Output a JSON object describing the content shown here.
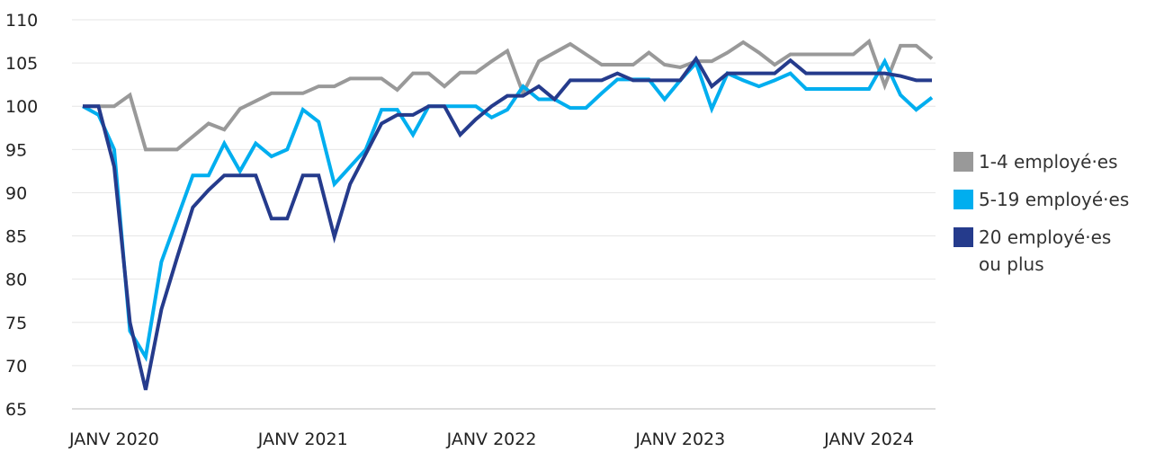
{
  "chart_data": {
    "type": "line",
    "categories": [
      null,
      null,
      "JANV 2020",
      null,
      null,
      null,
      null,
      null,
      null,
      null,
      null,
      null,
      null,
      null,
      "JANV 2021",
      null,
      null,
      null,
      null,
      null,
      null,
      null,
      null,
      null,
      null,
      null,
      "JANV 2022",
      null,
      null,
      null,
      null,
      null,
      null,
      null,
      null,
      null,
      null,
      null,
      "JANV 2023",
      null,
      null,
      null,
      null,
      null,
      null,
      null,
      null,
      null,
      null,
      null,
      "JANV 2024",
      null,
      null,
      null,
      null
    ],
    "series": [
      {
        "name": "1-4 employé·es",
        "color": "#999999",
        "values": [
          100,
          100,
          100,
          101.3,
          95,
          95,
          95,
          96.5,
          98,
          97.3,
          99.7,
          100.6,
          101.5,
          101.5,
          101.5,
          102.3,
          102.3,
          103.2,
          103.2,
          103.2,
          101.9,
          103.8,
          103.8,
          102.3,
          103.9,
          103.9,
          105.2,
          106.4,
          101.5,
          105.2,
          106.2,
          107.2,
          106,
          104.8,
          104.8,
          104.8,
          106.2,
          104.8,
          104.5,
          105.2,
          105.2,
          106.2,
          107.4,
          106.2,
          104.8,
          106,
          106,
          106,
          106,
          106,
          107.5,
          102.4,
          107,
          107,
          105.5
        ]
      },
      {
        "name": "5-19 employé·es",
        "color": "#00aeef",
        "values": [
          100,
          99,
          95,
          74,
          71,
          82,
          87,
          92,
          92,
          95.7,
          92.5,
          95.7,
          94.2,
          95,
          99.6,
          98.2,
          91,
          93,
          95,
          99.6,
          99.6,
          96.7,
          100,
          100,
          100,
          100,
          98.7,
          99.6,
          102.3,
          100.8,
          100.8,
          99.8,
          99.8,
          101.5,
          103.1,
          103.1,
          103.1,
          100.8,
          103,
          105,
          99.7,
          103.8,
          103,
          102.3,
          103,
          103.8,
          102,
          102,
          102,
          102,
          102,
          105.2,
          101.3,
          99.6,
          101
        ]
      },
      {
        "name": "20 employé·es ou plus",
        "color": "#253b8c",
        "values": [
          100,
          100,
          93,
          75,
          67.2,
          76.5,
          82.5,
          88.3,
          90.3,
          92,
          92,
          92,
          87,
          87,
          92,
          92,
          84.9,
          91,
          94.5,
          98,
          99,
          99,
          100,
          100,
          96.7,
          98.5,
          100,
          101.2,
          101.2,
          102.3,
          100.8,
          103,
          103,
          103,
          103.8,
          103,
          103,
          103,
          103,
          105.5,
          102.3,
          103.8,
          103.8,
          103.8,
          103.8,
          105.3,
          103.8,
          103.8,
          103.8,
          103.8,
          103.8,
          103.8,
          103.5,
          103,
          103
        ]
      }
    ],
    "ylim": [
      65,
      110
    ],
    "yticks": [
      65,
      70,
      75,
      80,
      85,
      90,
      95,
      100,
      105,
      110
    ],
    "grid": true
  }
}
